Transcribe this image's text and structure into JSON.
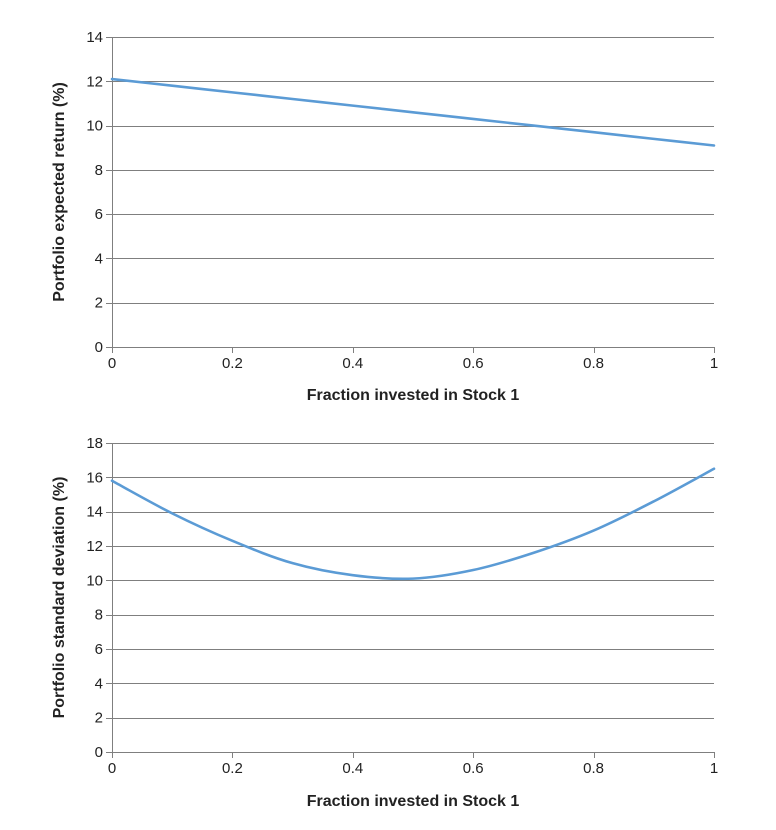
{
  "chart_data": [
    {
      "type": "line",
      "title": "",
      "xlabel": "Fraction invested in Stock 1",
      "ylabel": "Portfolio expected return (%)",
      "xlim": [
        0,
        1
      ],
      "ylim": [
        0,
        14
      ],
      "x_ticks": [
        "0",
        "0.2",
        "0.4",
        "0.6",
        "0.8",
        "1"
      ],
      "y_ticks": [
        "0",
        "2",
        "4",
        "6",
        "8",
        "10",
        "12",
        "14"
      ],
      "grid": "horizontal",
      "legend": "none",
      "series": [
        {
          "color": "#5b9bd5",
          "x": [
            0,
            0.1,
            0.2,
            0.3,
            0.4,
            0.5,
            0.6,
            0.7,
            0.8,
            0.9,
            1
          ],
          "y": [
            12.1,
            11.8,
            11.5,
            11.2,
            10.9,
            10.6,
            10.3,
            10.0,
            9.7,
            9.4,
            9.1
          ]
        }
      ]
    },
    {
      "type": "line",
      "title": "",
      "xlabel": "Fraction invested in Stock 1",
      "ylabel": "Portfolio standard deviation (%)",
      "xlim": [
        0,
        1
      ],
      "ylim": [
        0,
        18
      ],
      "x_ticks": [
        "0",
        "0.2",
        "0.4",
        "0.6",
        "0.8",
        "1"
      ],
      "y_ticks": [
        "0",
        "2",
        "4",
        "6",
        "8",
        "10",
        "12",
        "14",
        "16",
        "18"
      ],
      "grid": "horizontal",
      "legend": "none",
      "series": [
        {
          "color": "#5b9bd5",
          "x": [
            0,
            0.1,
            0.2,
            0.3,
            0.4,
            0.5,
            0.6,
            0.7,
            0.8,
            0.9,
            1
          ],
          "y": [
            15.8,
            13.9,
            12.3,
            11.0,
            10.3,
            10.1,
            10.6,
            11.6,
            12.9,
            14.6,
            16.5
          ]
        }
      ]
    }
  ]
}
